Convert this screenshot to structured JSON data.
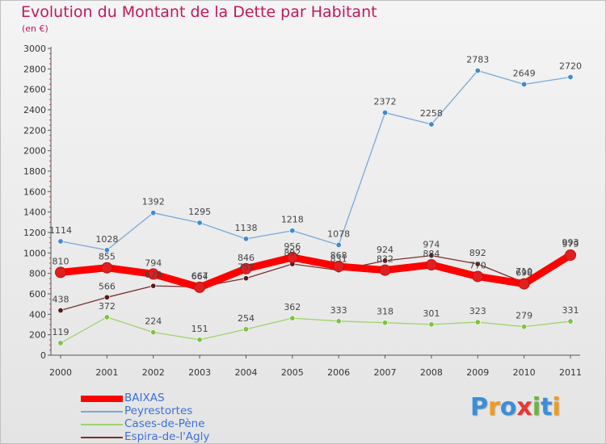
{
  "title": "Evolution du Montant de la Dette par Habitant",
  "subtitle": "(en €)",
  "logo": {
    "text": "Proxiti",
    "colors": [
      "#3b8ed8",
      "#f29b1e",
      "#3b8ed8",
      "#e53935",
      "#6db33f",
      "#3b8ed8",
      "#f29b1e"
    ]
  },
  "chart_data": {
    "type": "line",
    "title": "Evolution du Montant de la Dette par Habitant",
    "ylabel": "(en €)",
    "xlabel": "",
    "categories": [
      "2000",
      "2001",
      "2002",
      "2003",
      "2004",
      "2005",
      "2006",
      "2007",
      "2008",
      "2009",
      "2010",
      "2011"
    ],
    "ylim": [
      0,
      3000
    ],
    "yticks": [
      0,
      200,
      400,
      600,
      800,
      1000,
      1200,
      1400,
      1600,
      1800,
      2000,
      2200,
      2400,
      2600,
      2800,
      3000
    ],
    "grid": false,
    "legend_position": "bottom-left",
    "series": [
      {
        "name": "BAIXAS",
        "color": "#ff0000",
        "marker": "#e02020",
        "values": [
          810,
          855,
          794,
          664,
          846,
          956,
          868,
          832,
          884,
          770,
          698,
          979
        ]
      },
      {
        "name": "Peyrestortes",
        "color": "#7aa8d8",
        "marker": "#3d8bd1",
        "values": [
          1114,
          1028,
          1392,
          1295,
          1138,
          1218,
          1078,
          2372,
          2258,
          2783,
          2649,
          2720
        ]
      },
      {
        "name": "Cases-de-Pène",
        "color": "#9ed36a",
        "marker": "#7dc242",
        "values": [
          119,
          372,
          224,
          151,
          254,
          362,
          333,
          318,
          301,
          323,
          279,
          331
        ]
      },
      {
        "name": "Espira-de-l'Agly",
        "color": "#7b3030",
        "marker": "#5a1a1a",
        "values": [
          438,
          566,
          678,
          667,
          752,
          892,
          831,
          924,
          974,
          892,
          710,
          993
        ]
      }
    ]
  }
}
